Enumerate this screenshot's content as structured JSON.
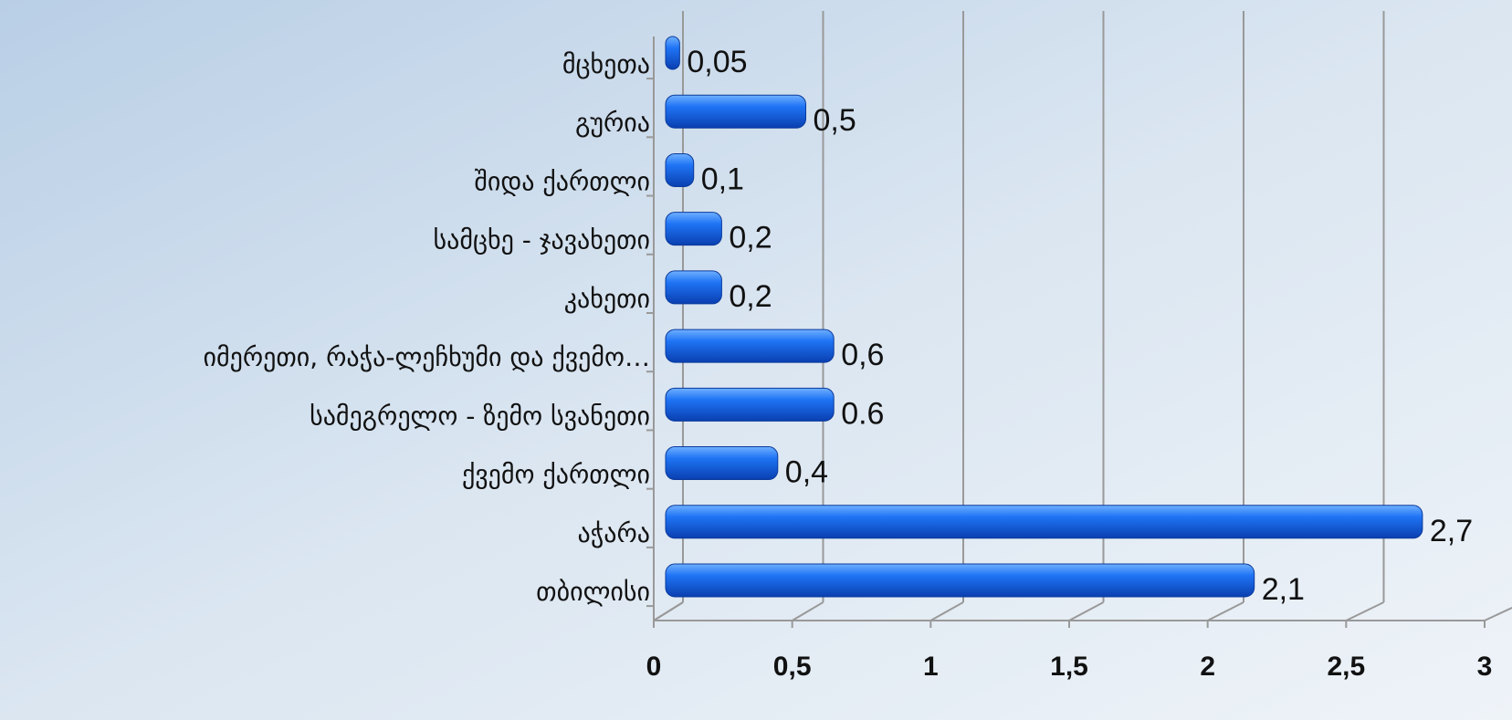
{
  "chart_data": {
    "type": "bar",
    "orientation": "horizontal",
    "categories": [
      "თბილისი",
      "აჭარა",
      "ქვემო ქართლი",
      "სამეგრელო - ზემო სვანეთი",
      "იმერეთი, რაჭა-ლეჩხუმი და ქვემო…",
      "კახეთი",
      "სამცხე - ჯავახეთი",
      "შიდა ქართლი",
      "გურია",
      "მცხეთა"
    ],
    "values": [
      2.1,
      2.7,
      0.4,
      0.6,
      0.6,
      0.2,
      0.2,
      0.1,
      0.5,
      0.05
    ],
    "value_labels": [
      "2,1",
      "2,7",
      "0,4",
      "0.6",
      "0,6",
      "0,2",
      "0,2",
      "0,1",
      "0,5",
      "0,05"
    ],
    "color": "#1a6cf0",
    "xlim": [
      0,
      3
    ],
    "xticks": [
      0,
      {
        "value": 0.5,
        "label": "0,5"
      },
      1,
      {
        "value": 1.5,
        "label": "1,5"
      },
      2,
      {
        "value": 2.5,
        "label": "2,5"
      },
      3
    ],
    "grid": true
  }
}
